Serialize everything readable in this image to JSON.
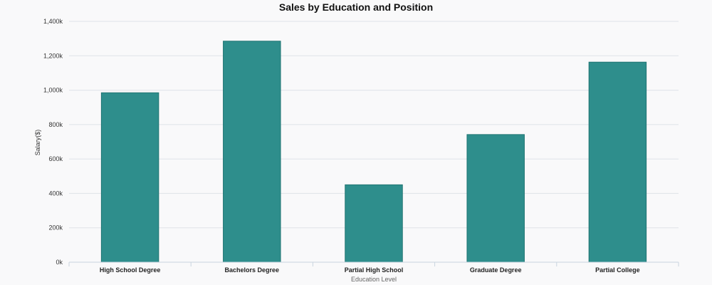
{
  "colors": {
    "bar": "#2e8e8c",
    "background": "#f9f9fa"
  },
  "chart_data": {
    "type": "bar",
    "title": "Sales by Education and Position",
    "xlabel": "Education Level",
    "ylabel": "Salary($)",
    "categories": [
      "High School Degree",
      "Bachelors Degree",
      "Partial High School",
      "Graduate Degree",
      "Partial College"
    ],
    "values": [
      985000,
      1285000,
      450000,
      742000,
      1163000
    ],
    "ylim": [
      0,
      1400000
    ],
    "yticks": [
      0,
      200000,
      400000,
      600000,
      800000,
      1000000,
      1200000,
      1400000
    ],
    "ytick_labels": [
      "0k",
      "200k",
      "400k",
      "600k",
      "800k",
      "1,000k",
      "1,200k",
      "1,400k"
    ],
    "grid": true,
    "legend": "none"
  }
}
